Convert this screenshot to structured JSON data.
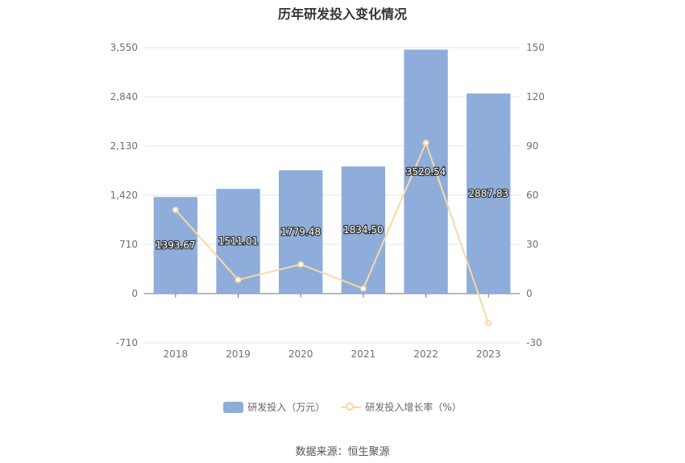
{
  "chart_data": {
    "type": "bar",
    "title": "历年研发投入变化情况",
    "categories": [
      "2018",
      "2019",
      "2020",
      "2021",
      "2022",
      "2023"
    ],
    "series": [
      {
        "name": "研发投入（万元）",
        "type": "bar",
        "axis": "left",
        "color": "#8eaddb",
        "values": [
          1393.67,
          1511.01,
          1779.48,
          1834.5,
          3520.54,
          2887.83
        ],
        "labels": [
          "1393.67",
          "1511.01",
          "1779.48",
          "1834.50",
          "3520.54",
          "2887.83"
        ]
      },
      {
        "name": "研发投入增长率（%）",
        "type": "line",
        "axis": "right",
        "color": "#f7d9a4",
        "values": [
          51,
          8.4,
          17.8,
          3.1,
          91.9,
          -18
        ]
      }
    ],
    "left_axis": {
      "ticks": [
        3550,
        2840,
        2130,
        1420,
        710,
        0,
        -710
      ],
      "tick_labels": [
        "3,550",
        "2,840",
        "2,130",
        "1,420",
        "710",
        "0",
        "-710"
      ],
      "ylim": [
        -710,
        3550
      ]
    },
    "right_axis": {
      "ticks": [
        150,
        120,
        90,
        60,
        30,
        0,
        -30
      ],
      "tick_labels": [
        "150",
        "120",
        "90",
        "60",
        "30",
        "0",
        "-30"
      ],
      "ylim": [
        -30,
        150
      ]
    },
    "grid": true,
    "legend_position": "bottom"
  },
  "source": "数据来源：恒生聚源"
}
